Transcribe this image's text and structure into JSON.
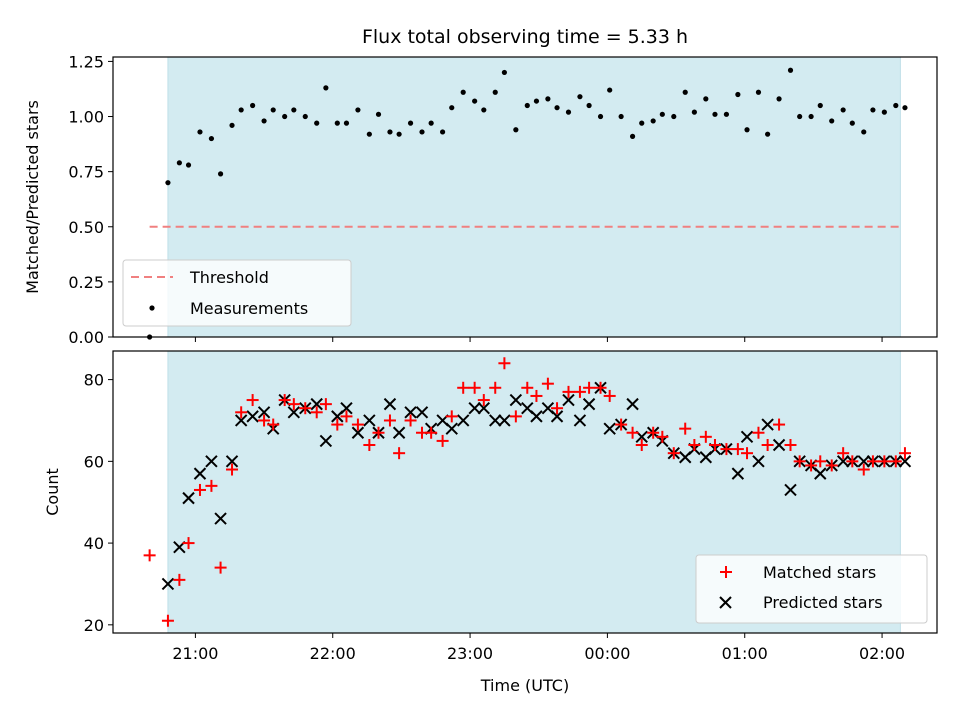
{
  "chart_data": [
    {
      "type": "scatter",
      "title": "Flux total observing time = 5.33 h",
      "xlabel": "",
      "ylabel": "Matched/Predicted stars",
      "ylim": [
        0.0,
        1.27
      ],
      "yticks": [
        "0.00",
        "0.25",
        "0.50",
        "0.75",
        "1.00",
        "1.25"
      ],
      "xlim": [
        "20:24",
        "02:24"
      ],
      "shaded_interval": [
        "20:48",
        "02:08"
      ],
      "shaded_color": "#d3ebf1",
      "threshold": {
        "name": "Threshold",
        "value": 0.5,
        "x_range": [
          "20:40",
          "02:08"
        ],
        "color": "#f08080"
      },
      "legend": {
        "placement": "lower-left",
        "entries": [
          "Threshold",
          "Measurements"
        ]
      },
      "series": [
        {
          "name": "Measurements",
          "color": "#000000",
          "x": [
            "20:40",
            "20:48",
            "20:53",
            "20:57",
            "21:02",
            "21:07",
            "21:11",
            "21:16",
            "21:20",
            "21:25",
            "21:30",
            "21:34",
            "21:39",
            "21:43",
            "21:48",
            "21:53",
            "21:57",
            "22:02",
            "22:06",
            "22:11",
            "22:16",
            "22:20",
            "22:25",
            "22:29",
            "22:34",
            "22:39",
            "22:43",
            "22:48",
            "22:52",
            "22:57",
            "23:02",
            "23:06",
            "23:11",
            "23:15",
            "23:20",
            "23:25",
            "23:29",
            "23:34",
            "23:38",
            "23:43",
            "23:48",
            "23:52",
            "23:57",
            "00:01",
            "00:06",
            "00:11",
            "00:15",
            "00:20",
            "00:24",
            "00:29",
            "00:34",
            "00:38",
            "00:43",
            "00:47",
            "00:52",
            "00:57",
            "01:01",
            "01:06",
            "01:10",
            "01:15",
            "01:20",
            "01:24",
            "01:29",
            "01:33",
            "01:38",
            "01:43",
            "01:47",
            "01:52",
            "01:56",
            "02:01",
            "02:06",
            "02:10"
          ],
          "y": [
            0.0,
            0.7,
            0.79,
            0.78,
            0.93,
            0.9,
            0.74,
            0.96,
            1.03,
            1.05,
            0.98,
            1.03,
            1.0,
            1.03,
            1.0,
            0.97,
            1.13,
            0.97,
            0.97,
            1.03,
            0.92,
            1.01,
            0.93,
            0.92,
            0.97,
            0.93,
            0.97,
            0.93,
            1.04,
            1.11,
            1.07,
            1.03,
            1.11,
            1.2,
            0.94,
            1.05,
            1.07,
            1.08,
            1.04,
            1.02,
            1.09,
            1.05,
            1.0,
            1.12,
            1.0,
            0.91,
            0.97,
            0.98,
            1.01,
            1.0,
            1.11,
            1.02,
            1.08,
            1.01,
            1.01,
            1.1,
            0.94,
            1.11,
            0.92,
            1.08,
            1.21,
            1.0,
            1.0,
            1.05,
            0.98,
            1.03,
            0.97,
            0.93,
            1.03,
            1.02,
            1.05,
            1.04
          ]
        }
      ]
    },
    {
      "type": "scatter",
      "title": "",
      "xlabel": "Time (UTC)",
      "ylabel": "Count",
      "ylim": [
        18,
        87
      ],
      "yticks": [
        "20",
        "40",
        "60",
        "80"
      ],
      "xlim": [
        "20:24",
        "02:24"
      ],
      "xticks": [
        "21:00",
        "22:00",
        "23:00",
        "00:00",
        "01:00",
        "02:00"
      ],
      "shaded_interval": [
        "20:48",
        "02:08"
      ],
      "legend": {
        "placement": "lower-right",
        "entries": [
          "Matched stars",
          "Predicted stars"
        ]
      },
      "series": [
        {
          "name": "Matched stars",
          "color": "#ff0000",
          "x": [
            "20:40",
            "20:48",
            "20:53",
            "20:57",
            "21:02",
            "21:07",
            "21:11",
            "21:16",
            "21:20",
            "21:25",
            "21:30",
            "21:34",
            "21:39",
            "21:43",
            "21:48",
            "21:53",
            "21:57",
            "22:02",
            "22:06",
            "22:11",
            "22:16",
            "22:20",
            "22:25",
            "22:29",
            "22:34",
            "22:39",
            "22:43",
            "22:48",
            "22:52",
            "22:57",
            "23:02",
            "23:06",
            "23:11",
            "23:15",
            "23:20",
            "23:25",
            "23:29",
            "23:34",
            "23:38",
            "23:43",
            "23:48",
            "23:52",
            "23:57",
            "00:01",
            "00:06",
            "00:11",
            "00:15",
            "00:20",
            "00:24",
            "00:29",
            "00:34",
            "00:38",
            "00:43",
            "00:47",
            "00:52",
            "00:57",
            "01:01",
            "01:06",
            "01:10",
            "01:15",
            "01:20",
            "01:24",
            "01:29",
            "01:33",
            "01:38",
            "01:43",
            "01:47",
            "01:52",
            "01:56",
            "02:01",
            "02:06",
            "02:10"
          ],
          "y": [
            37,
            21,
            31,
            40,
            53,
            54,
            34,
            58,
            72,
            75,
            70,
            69,
            75,
            74,
            73,
            72,
            74,
            69,
            71,
            69,
            64,
            67,
            70,
            62,
            70,
            67,
            67,
            65,
            71,
            78,
            78,
            75,
            78,
            84,
            71,
            78,
            76,
            79,
            73,
            77,
            77,
            78,
            78,
            76,
            69,
            67,
            64,
            67,
            66,
            62,
            68,
            64,
            66,
            64,
            63,
            63,
            62,
            67,
            64,
            69,
            64,
            60,
            59,
            60,
            59,
            62,
            60,
            58,
            60,
            60,
            60,
            62
          ]
        },
        {
          "name": "Predicted stars",
          "color": "#000000",
          "x": [
            "20:40",
            "20:48",
            "20:53",
            "20:57",
            "21:02",
            "21:07",
            "21:11",
            "21:16",
            "21:20",
            "21:25",
            "21:30",
            "21:34",
            "21:39",
            "21:43",
            "21:48",
            "21:53",
            "21:57",
            "22:02",
            "22:06",
            "22:11",
            "22:16",
            "22:20",
            "22:25",
            "22:29",
            "22:34",
            "22:39",
            "22:43",
            "22:48",
            "22:52",
            "22:57",
            "23:02",
            "23:06",
            "23:11",
            "23:15",
            "23:20",
            "23:25",
            "23:29",
            "23:34",
            "23:38",
            "23:43",
            "23:48",
            "23:52",
            "23:57",
            "00:01",
            "00:06",
            "00:11",
            "00:15",
            "00:20",
            "00:24",
            "00:29",
            "00:34",
            "00:38",
            "00:43",
            "00:47",
            "00:52",
            "00:57",
            "01:01",
            "01:06",
            "01:10",
            "01:15",
            "01:20",
            "01:24",
            "01:29",
            "01:33",
            "01:38",
            "01:43",
            "01:47",
            "01:52",
            "01:56",
            "02:01",
            "02:06",
            "02:10"
          ],
          "y": [
            null,
            30,
            39,
            51,
            57,
            60,
            46,
            60,
            70,
            71,
            72,
            68,
            75,
            72,
            73,
            74,
            65,
            71,
            73,
            67,
            70,
            67,
            74,
            67,
            72,
            72,
            68,
            70,
            68,
            70,
            73,
            73,
            70,
            70,
            75,
            73,
            71,
            73,
            71,
            75,
            70,
            74,
            78,
            68,
            69,
            74,
            66,
            67,
            65,
            62,
            61,
            63,
            61,
            63,
            63,
            57,
            66,
            60,
            69,
            64,
            53,
            60,
            59,
            57,
            59,
            60,
            60,
            60,
            60,
            60,
            60,
            60
          ]
        }
      ]
    }
  ]
}
